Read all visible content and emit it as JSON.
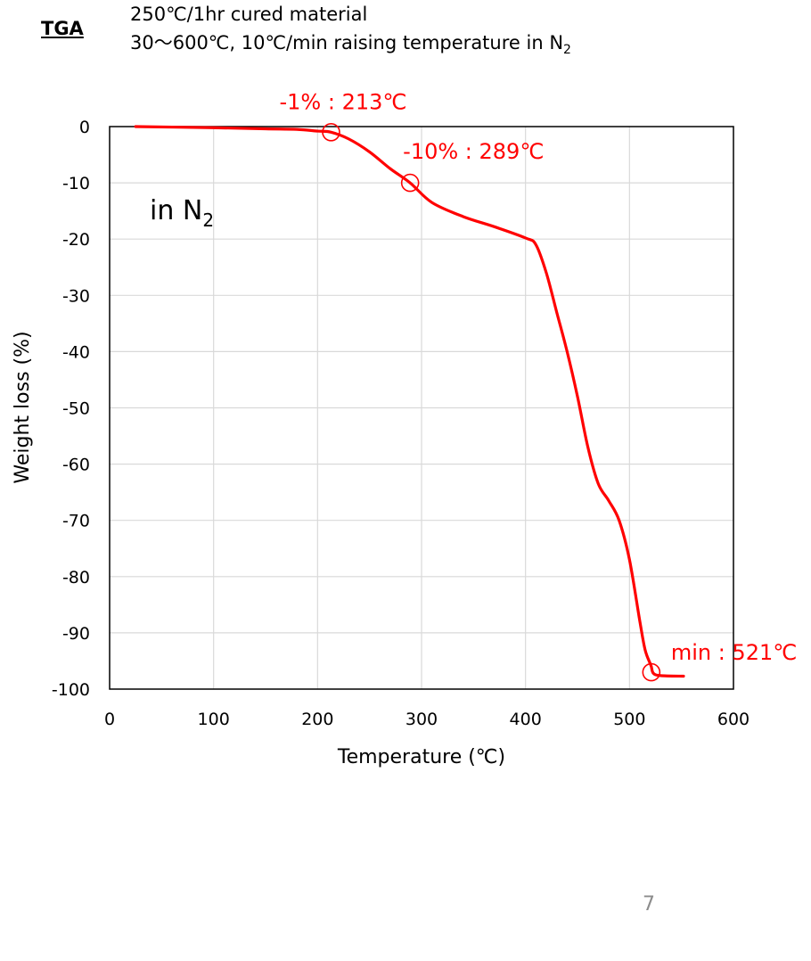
{
  "header": {
    "tag": "TGA",
    "line1": "250℃/1hr cured material",
    "line2_prefix": "30～600℃, 10℃/min raising temperature in N",
    "line2_sub": "2"
  },
  "page_number": "7",
  "chart_data": {
    "type": "line",
    "xlabel": "Temperature (℃)",
    "ylabel": "Weight loss (%)",
    "xlim": [
      0,
      600
    ],
    "ylim": [
      -100,
      0
    ],
    "xticks": [
      "0",
      "100",
      "200",
      "300",
      "400",
      "500",
      "600"
    ],
    "yticks": [
      "0",
      "-10",
      "-20",
      "-30",
      "-40",
      "-50",
      "-60",
      "-70",
      "-80",
      "-90",
      "-100"
    ],
    "grid": true,
    "line_color": "#ff0000",
    "series": [
      {
        "x": [
          25,
          100,
          150,
          180,
          200,
          213,
          230,
          250,
          270,
          289,
          310,
          340,
          370,
          400,
          410,
          420,
          430,
          440,
          450,
          460,
          470,
          480,
          490,
          500,
          510,
          515,
          520,
          521,
          523,
          530,
          552
        ],
        "y": [
          0,
          -0.2,
          -0.4,
          -0.5,
          -0.8,
          -1,
          -2.2,
          -4.5,
          -7.5,
          -10,
          -13.5,
          -16,
          -17.8,
          -19.8,
          -21,
          -26,
          -33,
          -40,
          -48,
          -57,
          -63.5,
          -66.5,
          -70,
          -77,
          -88,
          -93,
          -95.5,
          -96,
          -97.2,
          -97.6,
          -97.7
        ]
      }
    ],
    "annotations": [
      {
        "text": "-1% : 213℃",
        "x": 213,
        "y": -1,
        "color": "#ff0000"
      },
      {
        "text": "-10% : 289℃",
        "x": 289,
        "y": -10,
        "color": "#ff0000"
      },
      {
        "text": "min : 521℃",
        "x": 521,
        "y": -97,
        "color": "#ff0000"
      }
    ],
    "inset_label": {
      "main": "in N",
      "sub": "2"
    }
  }
}
